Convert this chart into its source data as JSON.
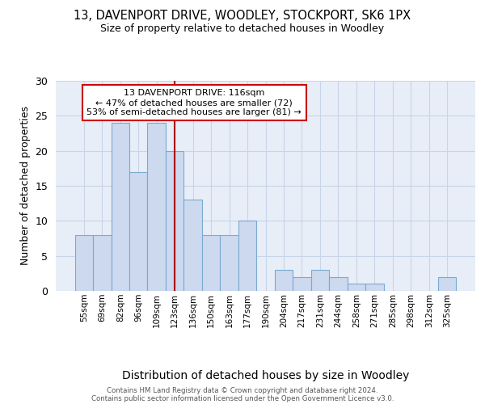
{
  "title_line1": "13, DAVENPORT DRIVE, WOODLEY, STOCKPORT, SK6 1PX",
  "title_line2": "Size of property relative to detached houses in Woodley",
  "xlabel": "Distribution of detached houses by size in Woodley",
  "ylabel": "Number of detached properties",
  "bin_labels": [
    "55sqm",
    "69sqm",
    "82sqm",
    "96sqm",
    "109sqm",
    "123sqm",
    "136sqm",
    "150sqm",
    "163sqm",
    "177sqm",
    "190sqm",
    "204sqm",
    "217sqm",
    "231sqm",
    "244sqm",
    "258sqm",
    "271sqm",
    "285sqm",
    "298sqm",
    "312sqm",
    "325sqm"
  ],
  "counts": [
    8,
    8,
    24,
    17,
    24,
    20,
    13,
    8,
    8,
    10,
    0,
    3,
    2,
    3,
    2,
    1,
    1,
    0,
    0,
    0,
    2
  ],
  "bar_color": "#ccd9ef",
  "bar_edge_color": "#7aaad0",
  "vline_x": 5,
  "vline_color": "#aa0000",
  "annotation_text": "13 DAVENPORT DRIVE: 116sqm\n← 47% of detached houses are smaller (72)\n53% of semi-detached houses are larger (81) →",
  "annotation_box_color": "white",
  "annotation_box_edge_color": "#cc0000",
  "footnote_line1": "Contains HM Land Registry data © Crown copyright and database right 2024.",
  "footnote_line2": "Contains public sector information licensed under the Open Government Licence v3.0.",
  "ylim": [
    0,
    30
  ],
  "yticks": [
    0,
    5,
    10,
    15,
    20,
    25,
    30
  ],
  "grid_color": "#c8d4e8",
  "background_color": "#e8eef8"
}
